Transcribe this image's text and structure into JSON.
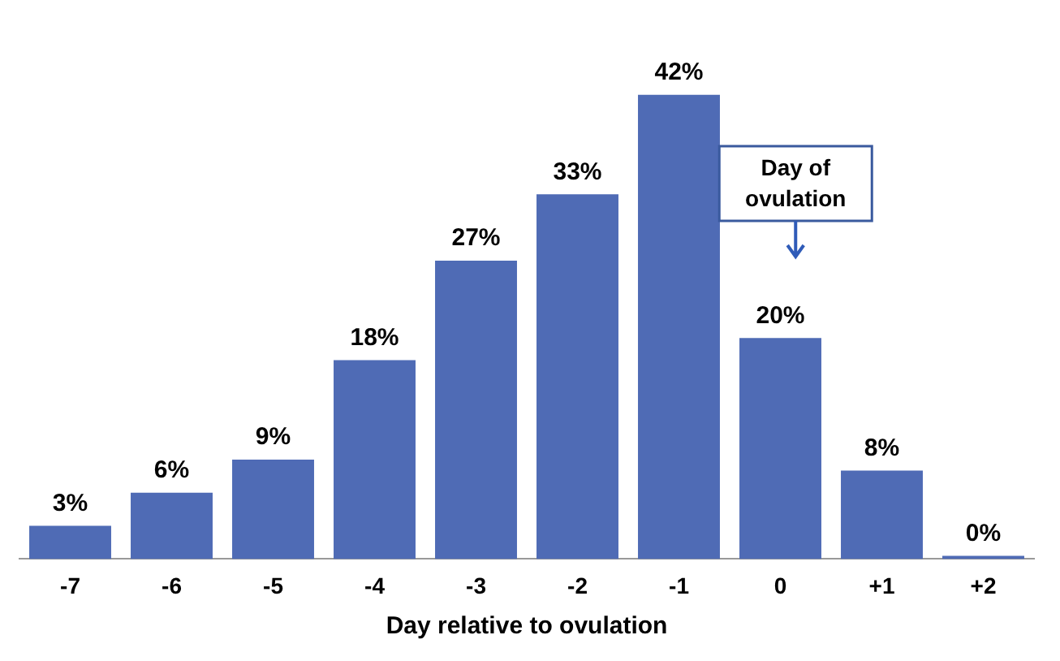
{
  "chart_data": {
    "type": "bar",
    "xlabel": "Day relative to ovulation",
    "categories": [
      "-7",
      "-6",
      "-5",
      "-4",
      "-3",
      "-2",
      "-1",
      "0",
      "+1",
      "+2"
    ],
    "values": [
      3,
      6,
      9,
      18,
      27,
      33,
      42,
      20,
      8,
      0
    ],
    "value_labels": [
      "3%",
      "6%",
      "9%",
      "18%",
      "27%",
      "33%",
      "42%",
      "20%",
      "8%",
      "0%"
    ],
    "color": "#4f6bb5",
    "annotations": [
      "Day of ovulation"
    ],
    "grid": false,
    "legend": false
  }
}
